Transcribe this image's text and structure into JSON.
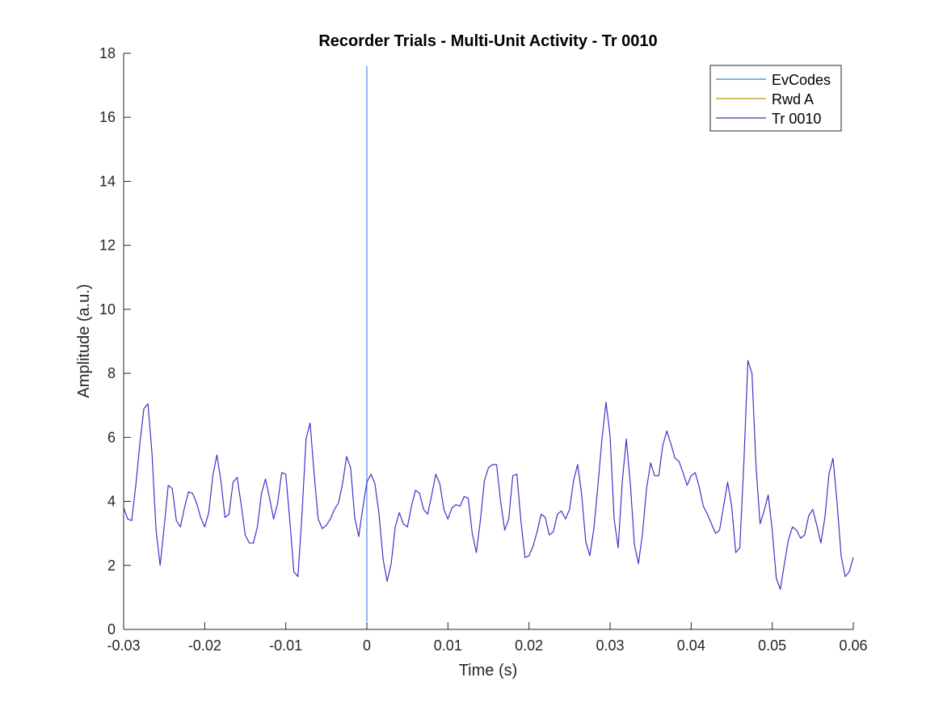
{
  "chart_data": {
    "type": "line",
    "title": "Recorder Trials - Multi-Unit Activity - Tr 0010",
    "xlabel": "Time (s)",
    "ylabel": "Amplitude (a.u.)",
    "xlim": [
      -0.03,
      0.06
    ],
    "ylim": [
      0,
      18
    ],
    "xticks": [
      -0.03,
      -0.02,
      -0.01,
      0,
      0.01,
      0.02,
      0.03,
      0.04,
      0.05,
      0.06
    ],
    "xtick_labels": [
      "-0.03",
      "-0.02",
      "-0.01",
      "0",
      "0.01",
      "0.02",
      "0.03",
      "0.04",
      "0.05",
      "0.06"
    ],
    "yticks": [
      0,
      2,
      4,
      6,
      8,
      10,
      12,
      14,
      16,
      18
    ],
    "ytick_labels": [
      "0",
      "2",
      "4",
      "6",
      "8",
      "10",
      "12",
      "14",
      "16",
      "18"
    ],
    "grid": false,
    "legend_position": "top-right",
    "legend": [
      {
        "label": "EvCodes",
        "color": "#3a7de0"
      },
      {
        "label": "Rwd A",
        "color": "#b8960c"
      },
      {
        "label": "Tr 0010",
        "color": "#3b35c6"
      }
    ],
    "series": [
      {
        "name": "EvCodes",
        "color": "#7aa4f5",
        "type": "vline",
        "x": [
          0,
          0
        ],
        "y": [
          0.25,
          17.6
        ]
      },
      {
        "name": "Tr 0010",
        "color": "#3b35c6",
        "points": [
          [
            -0.03,
            3.8
          ],
          [
            -0.0295,
            3.45
          ],
          [
            -0.029,
            3.4
          ],
          [
            -0.0285,
            4.5
          ],
          [
            -0.028,
            5.8
          ],
          [
            -0.0275,
            6.9
          ],
          [
            -0.027,
            7.05
          ],
          [
            -0.0265,
            5.5
          ],
          [
            -0.026,
            3.1
          ],
          [
            -0.0255,
            2.0
          ],
          [
            -0.025,
            3.2
          ],
          [
            -0.0245,
            4.5
          ],
          [
            -0.024,
            4.4
          ],
          [
            -0.0235,
            3.4
          ],
          [
            -0.023,
            3.2
          ],
          [
            -0.0225,
            3.8
          ],
          [
            -0.022,
            4.3
          ],
          [
            -0.0215,
            4.25
          ],
          [
            -0.021,
            3.95
          ],
          [
            -0.0205,
            3.5
          ],
          [
            -0.02,
            3.2
          ],
          [
            -0.0195,
            3.65
          ],
          [
            -0.019,
            4.8
          ],
          [
            -0.0185,
            5.45
          ],
          [
            -0.018,
            4.65
          ],
          [
            -0.0175,
            3.5
          ],
          [
            -0.017,
            3.6
          ],
          [
            -0.0165,
            4.6
          ],
          [
            -0.016,
            4.75
          ],
          [
            -0.0155,
            3.9
          ],
          [
            -0.015,
            2.95
          ],
          [
            -0.0145,
            2.7
          ],
          [
            -0.014,
            2.7
          ],
          [
            -0.0135,
            3.2
          ],
          [
            -0.013,
            4.25
          ],
          [
            -0.0125,
            4.7
          ],
          [
            -0.012,
            4.1
          ],
          [
            -0.0115,
            3.45
          ],
          [
            -0.011,
            3.95
          ],
          [
            -0.0105,
            4.9
          ],
          [
            -0.01,
            4.85
          ],
          [
            -0.0095,
            3.4
          ],
          [
            -0.009,
            1.8
          ],
          [
            -0.0085,
            1.65
          ],
          [
            -0.008,
            3.6
          ],
          [
            -0.0075,
            5.95
          ],
          [
            -0.007,
            6.45
          ],
          [
            -0.0065,
            4.85
          ],
          [
            -0.006,
            3.45
          ],
          [
            -0.0055,
            3.15
          ],
          [
            -0.005,
            3.25
          ],
          [
            -0.0045,
            3.45
          ],
          [
            -0.004,
            3.75
          ],
          [
            -0.0035,
            3.95
          ],
          [
            -0.003,
            4.55
          ],
          [
            -0.0025,
            5.4
          ],
          [
            -0.002,
            5.05
          ],
          [
            -0.0015,
            3.5
          ],
          [
            -0.001,
            2.9
          ],
          [
            -0.0005,
            3.8
          ],
          [
            0.0,
            4.6
          ],
          [
            0.0005,
            4.85
          ],
          [
            0.001,
            4.55
          ],
          [
            0.0015,
            3.6
          ],
          [
            0.002,
            2.2
          ],
          [
            0.0025,
            1.5
          ],
          [
            0.003,
            2.05
          ],
          [
            0.0035,
            3.2
          ],
          [
            0.004,
            3.65
          ],
          [
            0.0045,
            3.3
          ],
          [
            0.005,
            3.2
          ],
          [
            0.0055,
            3.85
          ],
          [
            0.006,
            4.35
          ],
          [
            0.0065,
            4.25
          ],
          [
            0.007,
            3.75
          ],
          [
            0.0075,
            3.6
          ],
          [
            0.008,
            4.2
          ],
          [
            0.0085,
            4.85
          ],
          [
            0.009,
            4.55
          ],
          [
            0.0095,
            3.75
          ],
          [
            0.01,
            3.45
          ],
          [
            0.0105,
            3.8
          ],
          [
            0.011,
            3.9
          ],
          [
            0.0115,
            3.85
          ],
          [
            0.012,
            4.15
          ],
          [
            0.0125,
            4.1
          ],
          [
            0.013,
            3.0
          ],
          [
            0.0135,
            2.4
          ],
          [
            0.014,
            3.4
          ],
          [
            0.0145,
            4.65
          ],
          [
            0.015,
            5.05
          ],
          [
            0.0155,
            5.15
          ],
          [
            0.016,
            5.15
          ],
          [
            0.0165,
            4.0
          ],
          [
            0.017,
            3.1
          ],
          [
            0.0175,
            3.45
          ],
          [
            0.018,
            4.8
          ],
          [
            0.0185,
            4.85
          ],
          [
            0.019,
            3.4
          ],
          [
            0.0195,
            2.25
          ],
          [
            0.02,
            2.3
          ],
          [
            0.0205,
            2.6
          ],
          [
            0.021,
            3.05
          ],
          [
            0.0215,
            3.6
          ],
          [
            0.022,
            3.5
          ],
          [
            0.0225,
            2.95
          ],
          [
            0.023,
            3.05
          ],
          [
            0.0235,
            3.6
          ],
          [
            0.024,
            3.7
          ],
          [
            0.0245,
            3.45
          ],
          [
            0.025,
            3.75
          ],
          [
            0.0255,
            4.65
          ],
          [
            0.026,
            5.15
          ],
          [
            0.0265,
            4.2
          ],
          [
            0.027,
            2.75
          ],
          [
            0.0275,
            2.3
          ],
          [
            0.028,
            3.15
          ],
          [
            0.0285,
            4.5
          ],
          [
            0.029,
            5.95
          ],
          [
            0.0295,
            7.1
          ],
          [
            0.03,
            6.05
          ],
          [
            0.0305,
            3.45
          ],
          [
            0.031,
            2.55
          ],
          [
            0.0315,
            4.6
          ],
          [
            0.032,
            5.95
          ],
          [
            0.0325,
            4.55
          ],
          [
            0.033,
            2.65
          ],
          [
            0.0335,
            2.05
          ],
          [
            0.034,
            3.0
          ],
          [
            0.0345,
            4.4
          ],
          [
            0.035,
            5.2
          ],
          [
            0.0355,
            4.8
          ],
          [
            0.036,
            4.8
          ],
          [
            0.0365,
            5.75
          ],
          [
            0.037,
            6.2
          ],
          [
            0.0375,
            5.8
          ],
          [
            0.038,
            5.35
          ],
          [
            0.0385,
            5.25
          ],
          [
            0.039,
            4.9
          ],
          [
            0.0395,
            4.5
          ],
          [
            0.04,
            4.8
          ],
          [
            0.0405,
            4.9
          ],
          [
            0.041,
            4.45
          ],
          [
            0.0415,
            3.85
          ],
          [
            0.042,
            3.6
          ],
          [
            0.0425,
            3.3
          ],
          [
            0.043,
            3.0
          ],
          [
            0.0435,
            3.1
          ],
          [
            0.044,
            3.85
          ],
          [
            0.0445,
            4.6
          ],
          [
            0.045,
            3.85
          ],
          [
            0.0455,
            2.4
          ],
          [
            0.046,
            2.55
          ],
          [
            0.0465,
            5.2
          ],
          [
            0.047,
            8.4
          ],
          [
            0.0475,
            8.0
          ],
          [
            0.048,
            5.1
          ],
          [
            0.0485,
            3.3
          ],
          [
            0.049,
            3.7
          ],
          [
            0.0495,
            4.2
          ],
          [
            0.05,
            3.1
          ],
          [
            0.0505,
            1.6
          ],
          [
            0.051,
            1.25
          ],
          [
            0.0515,
            2.05
          ],
          [
            0.052,
            2.8
          ],
          [
            0.0525,
            3.2
          ],
          [
            0.053,
            3.1
          ],
          [
            0.0535,
            2.85
          ],
          [
            0.054,
            2.95
          ],
          [
            0.0545,
            3.55
          ],
          [
            0.055,
            3.75
          ],
          [
            0.0555,
            3.25
          ],
          [
            0.056,
            2.7
          ],
          [
            0.0565,
            3.5
          ],
          [
            0.057,
            4.85
          ],
          [
            0.0575,
            5.35
          ],
          [
            0.058,
            3.95
          ],
          [
            0.0585,
            2.3
          ],
          [
            0.059,
            1.65
          ],
          [
            0.0595,
            1.8
          ],
          [
            0.06,
            2.25
          ]
        ]
      }
    ]
  }
}
